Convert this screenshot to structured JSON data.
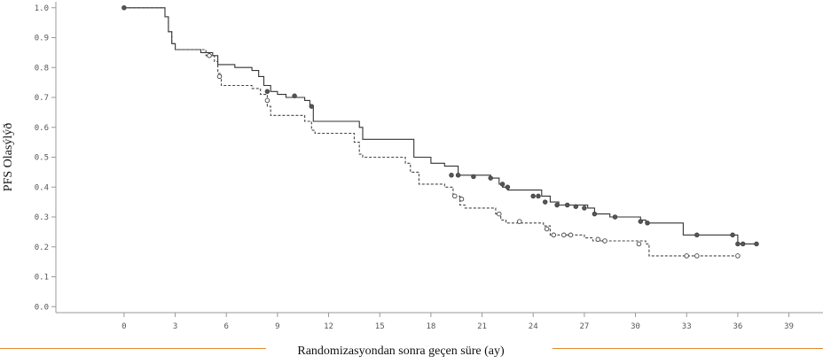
{
  "chart_data": {
    "type": "line",
    "title": "",
    "xlabel": "Randomizasyondan sonra geçen süre (ay)",
    "ylabel": "PFS Olasýlýð",
    "xlim": [
      -4,
      41
    ],
    "ylim": [
      -0.02,
      1.02
    ],
    "xticks": [
      0,
      3,
      6,
      9,
      12,
      15,
      18,
      21,
      24,
      27,
      30,
      33,
      36,
      39
    ],
    "xtick_labels": [
      "0",
      "3",
      "6",
      "9",
      "12",
      "15",
      "18",
      "21",
      "24",
      "27",
      "30",
      "33",
      "36",
      "39"
    ],
    "yticks": [
      0,
      0.1,
      0.2,
      0.3,
      0.4,
      0.5,
      0.6,
      0.7,
      0.8,
      0.9,
      1.0
    ],
    "ytick_labels": [
      "0.0",
      "0.1",
      "0.2",
      "0.3",
      "0.4",
      "0.5",
      "0.6",
      "0.7",
      "0.8",
      "0.9",
      "1.0"
    ],
    "grid": false,
    "colors": {
      "axis": "#999999",
      "solid": "#333333",
      "dashed": "#444444",
      "footer_rule": "#e0892e"
    },
    "series": [
      {
        "style": "solid",
        "x": [
          0,
          2.4,
          2.6,
          2.8,
          3.0,
          3.5,
          4.5,
          5.2,
          5.5,
          6.5,
          7.5,
          7.9,
          8.2,
          8.6,
          9.0,
          9.5,
          10.6,
          10.9,
          11.1,
          13.8,
          14.0,
          17.0,
          18.0,
          18.8,
          19.6,
          21.5,
          22.0,
          22.2,
          22.5,
          24.5,
          25.0,
          25.5,
          26.3,
          27.2,
          27.6,
          28.5,
          30.3,
          30.6,
          32.8,
          36.0,
          37.0
        ],
        "y": [
          1.0,
          0.97,
          0.92,
          0.88,
          0.86,
          0.86,
          0.85,
          0.84,
          0.81,
          0.8,
          0.79,
          0.77,
          0.74,
          0.72,
          0.71,
          0.7,
          0.69,
          0.67,
          0.62,
          0.6,
          0.56,
          0.5,
          0.48,
          0.47,
          0.44,
          0.43,
          0.41,
          0.4,
          0.39,
          0.37,
          0.35,
          0.34,
          0.34,
          0.33,
          0.31,
          0.3,
          0.29,
          0.28,
          0.24,
          0.21,
          0.21
        ],
        "censored": [
          [
            8.4,
            0.72
          ],
          [
            10.0,
            0.705
          ],
          [
            11.0,
            0.67
          ],
          [
            19.2,
            0.44
          ],
          [
            19.6,
            0.44
          ],
          [
            20.5,
            0.435
          ],
          [
            21.5,
            0.43
          ],
          [
            22.2,
            0.41
          ],
          [
            22.5,
            0.4
          ],
          [
            24.0,
            0.37
          ],
          [
            24.3,
            0.37
          ],
          [
            24.7,
            0.35
          ],
          [
            25.4,
            0.34
          ],
          [
            26.0,
            0.34
          ],
          [
            26.5,
            0.335
          ],
          [
            27.0,
            0.33
          ],
          [
            27.6,
            0.31
          ],
          [
            28.8,
            0.3
          ],
          [
            30.3,
            0.285
          ],
          [
            30.7,
            0.28
          ],
          [
            33.6,
            0.24
          ],
          [
            35.7,
            0.24
          ],
          [
            36.0,
            0.21
          ],
          [
            36.3,
            0.21
          ],
          [
            37.1,
            0.21
          ]
        ]
      },
      {
        "style": "dashed",
        "x": [
          0,
          2.4,
          2.6,
          2.8,
          3.0,
          4.8,
          5.3,
          5.5,
          5.7,
          7.5,
          8.0,
          8.4,
          8.6,
          10.6,
          11.0,
          11.2,
          13.5,
          13.8,
          14.0,
          16.5,
          16.8,
          17.3,
          18.8,
          19.3,
          19.7,
          20.0,
          21.8,
          22.1,
          22.4,
          24.6,
          25.0,
          27.0,
          27.5,
          30.2,
          30.6,
          30.8,
          36.0
        ],
        "y": [
          1.0,
          0.97,
          0.92,
          0.88,
          0.86,
          0.84,
          0.82,
          0.78,
          0.74,
          0.73,
          0.71,
          0.67,
          0.64,
          0.62,
          0.59,
          0.58,
          0.55,
          0.51,
          0.5,
          0.48,
          0.45,
          0.41,
          0.4,
          0.37,
          0.34,
          0.33,
          0.31,
          0.29,
          0.28,
          0.27,
          0.24,
          0.23,
          0.22,
          0.22,
          0.21,
          0.17,
          0.17
        ]
      }
    ],
    "censored_dashed": [
      [
        5.0,
        0.84
      ],
      [
        5.6,
        0.77
      ],
      [
        8.4,
        0.69
      ],
      [
        19.4,
        0.37
      ],
      [
        19.8,
        0.36
      ],
      [
        22.0,
        0.31
      ],
      [
        23.2,
        0.285
      ],
      [
        24.8,
        0.26
      ],
      [
        25.2,
        0.24
      ],
      [
        25.8,
        0.24
      ],
      [
        26.2,
        0.24
      ],
      [
        27.8,
        0.225
      ],
      [
        28.2,
        0.22
      ],
      [
        30.2,
        0.21
      ],
      [
        33.0,
        0.17
      ],
      [
        33.6,
        0.17
      ],
      [
        36.0,
        0.17
      ]
    ]
  }
}
